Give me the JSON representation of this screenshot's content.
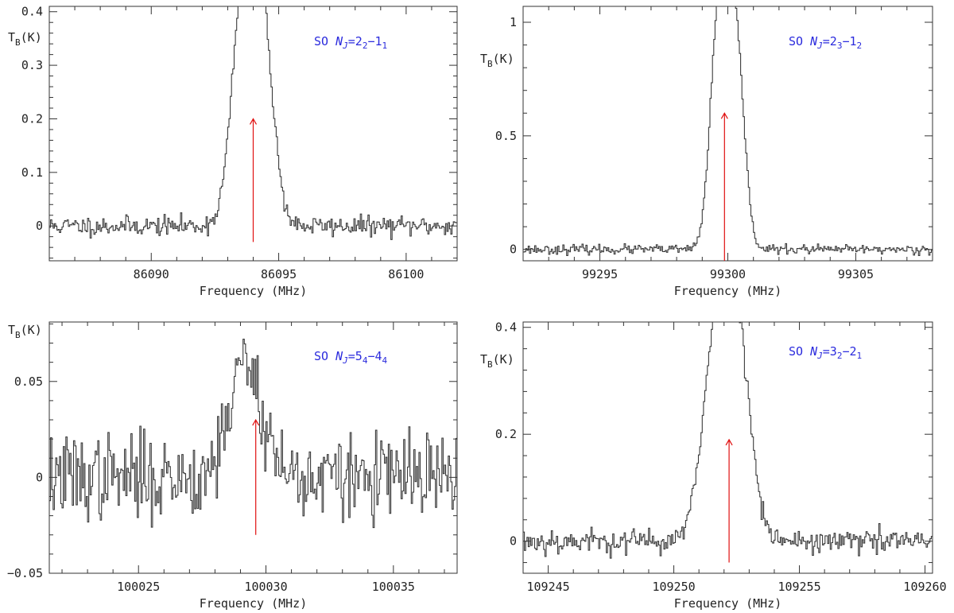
{
  "chart_data": [
    {
      "type": "line",
      "panel": "top-left",
      "molecule": "SO",
      "transition": "N_J=2_2−1_1",
      "label_parts": {
        "species": "SO",
        "n": "N",
        "j": "J",
        "eq": "=",
        "upper": "2",
        "upper_sub": "2",
        "dash": "−",
        "lower": "1",
        "lower_sub": "1"
      },
      "xlabel": "Frequency (MHz)",
      "ylabel": "T",
      "ylabel_sub": "B",
      "ylabel_unit": "(K)",
      "xlim": [
        86086.0,
        86102.0
      ],
      "ylim": [
        -0.065,
        0.41
      ],
      "xticks": [
        86090,
        86095,
        86100
      ],
      "xtick_labels": [
        "86090",
        "86095",
        "86100"
      ],
      "yticks": [
        0,
        0.1,
        0.2,
        0.3,
        0.4
      ],
      "ytick_labels": [
        "0",
        "0.1",
        "0.2",
        "0.3",
        "0.4"
      ],
      "line_rest_freq": 86094.0,
      "marker_from": -0.03,
      "marker_to": 0.2,
      "peaks": [
        {
          "x": 86093.6,
          "y": 0.39,
          "width": 0.45
        },
        {
          "x": 86094.3,
          "y": 0.39,
          "width": 0.45
        }
      ],
      "noise": 0.009,
      "seed": 11
    },
    {
      "type": "line",
      "panel": "top-right",
      "molecule": "SO",
      "transition": "N_J=2_3−1_2",
      "label_parts": {
        "species": "SO",
        "n": "N",
        "j": "J",
        "eq": "=",
        "upper": "2",
        "upper_sub": "3",
        "dash": "−",
        "lower": "1",
        "lower_sub": "2"
      },
      "xlabel": "Frequency (MHz)",
      "ylabel": "T",
      "ylabel_sub": "B",
      "ylabel_unit": "(K)",
      "xlim": [
        99292.0,
        99308.0
      ],
      "ylim": [
        -0.05,
        1.07
      ],
      "xticks": [
        99295,
        99300,
        99305
      ],
      "xtick_labels": [
        "99295",
        "99300",
        "99305"
      ],
      "yticks": [
        0,
        0.5,
        1
      ],
      "ytick_labels": [
        "0",
        "0.5",
        "1"
      ],
      "line_rest_freq": 99299.87,
      "marker_from": -0.05,
      "marker_to": 0.6,
      "peaks": [
        {
          "x": 99299.65,
          "y": 1.02,
          "width": 0.33
        },
        {
          "x": 99300.3,
          "y": 0.93,
          "width": 0.33
        }
      ],
      "noise": 0.01,
      "seed": 23
    },
    {
      "type": "line",
      "panel": "bottom-left",
      "molecule": "SO",
      "transition": "N_J=5_4−4_4",
      "label_parts": {
        "species": "SO",
        "n": "N",
        "j": "J",
        "eq": "=",
        "upper": "5",
        "upper_sub": "4",
        "dash": "−",
        "lower": "4",
        "lower_sub": "4"
      },
      "xlabel": "Frequency (MHz)",
      "ylabel": "T",
      "ylabel_sub": "B",
      "ylabel_unit": "(K)",
      "xlim": [
        100021.5,
        100037.5
      ],
      "ylim": [
        -0.05,
        0.081
      ],
      "xticks": [
        100025,
        100030,
        100035
      ],
      "xtick_labels": [
        "100025",
        "100030",
        "100035"
      ],
      "yticks": [
        -0.05,
        0,
        0.05
      ],
      "ytick_labels": [
        "−0.05",
        "0",
        "0.05"
      ],
      "line_rest_freq": 100029.6,
      "marker_from": -0.03,
      "marker_to": 0.03,
      "peaks": [
        {
          "x": 100029.2,
          "y": 0.06,
          "width": 0.65
        }
      ],
      "noise": 0.011,
      "seed": 37
    },
    {
      "type": "line",
      "panel": "bottom-right",
      "molecule": "SO",
      "transition": "N_J=3_2−2_1",
      "label_parts": {
        "species": "SO",
        "n": "N",
        "j": "J",
        "eq": "=",
        "upper": "3",
        "upper_sub": "2",
        "dash": "−",
        "lower": "2",
        "lower_sub": "1"
      },
      "xlabel": "Frequency (MHz)",
      "ylabel": "T",
      "ylabel_sub": "B",
      "ylabel_unit": "(K)",
      "xlim": [
        109244.0,
        109260.3
      ],
      "ylim": [
        -0.06,
        0.41
      ],
      "xticks": [
        109245,
        109250,
        109255,
        109260
      ],
      "xtick_labels": [
        "109245",
        "109250",
        "109255",
        "109260"
      ],
      "yticks": [
        0,
        0.2,
        0.4
      ],
      "ytick_labels": [
        "0",
        "0.2",
        "0.4"
      ],
      "line_rest_freq": 109252.2,
      "marker_from": -0.04,
      "marker_to": 0.19,
      "peaks": [
        {
          "x": 109251.7,
          "y": 0.35,
          "width": 0.55
        },
        {
          "x": 109252.5,
          "y": 0.36,
          "width": 0.55
        }
      ],
      "noise": 0.012,
      "seed": 53
    }
  ]
}
